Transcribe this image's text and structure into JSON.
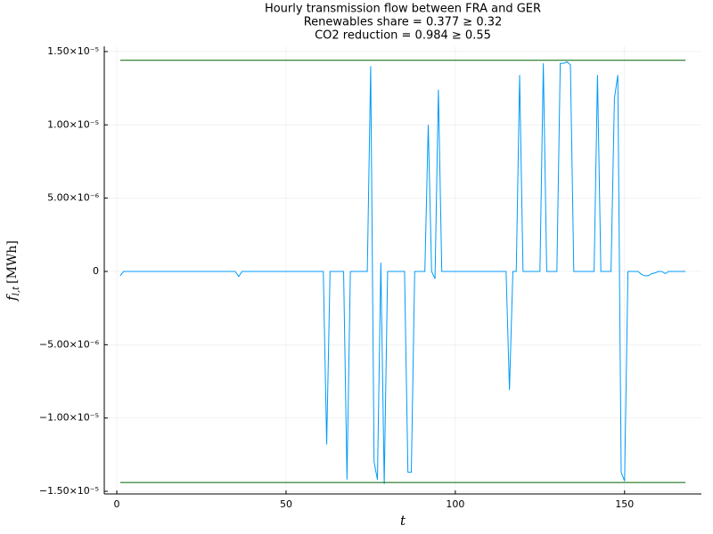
{
  "chart_data": {
    "type": "line",
    "title": [
      "Hourly transmission flow between FRA and GER",
      "Renewables share = 0.377 ≥ 0.32",
      "CO2 reduction = 0.984 ≥ 0.55"
    ],
    "xlabel": "t",
    "ylabel": {
      "symbol": "f",
      "subscript": "l,t",
      "unit": "[MWh]"
    },
    "xlim": [
      -3.7,
      172.7
    ],
    "ylim": [
      -1.518e-05,
      1.536e-05
    ],
    "xticks": [
      0,
      50,
      100,
      150
    ],
    "yticks": [
      {
        "value": 1.5e-05,
        "label": "1.50×10⁻⁵"
      },
      {
        "value": 1e-05,
        "label": "1.00×10⁻⁵"
      },
      {
        "value": 5e-06,
        "label": "5.00×10⁻⁶"
      },
      0,
      {
        "value": -5e-06,
        "label": "−5.00×10⁻⁶"
      },
      {
        "value": -1e-05,
        "label": "−1.00×10⁻⁵"
      },
      {
        "value": -1.5e-05,
        "label": "−1.50×10⁻⁵"
      }
    ],
    "grid": true,
    "x": [
      1,
      2,
      3,
      4,
      5,
      6,
      7,
      8,
      9,
      10,
      11,
      12,
      13,
      14,
      15,
      16,
      17,
      18,
      19,
      20,
      21,
      22,
      23,
      24,
      25,
      26,
      27,
      28,
      29,
      30,
      31,
      32,
      33,
      34,
      35,
      36,
      37,
      38,
      39,
      40,
      41,
      42,
      43,
      44,
      45,
      46,
      47,
      48,
      49,
      50,
      51,
      52,
      53,
      54,
      55,
      56,
      57,
      58,
      59,
      60,
      61,
      62,
      63,
      64,
      65,
      66,
      67,
      68,
      69,
      70,
      71,
      72,
      73,
      74,
      75,
      76,
      77,
      78,
      79,
      80,
      81,
      82,
      83,
      84,
      85,
      86,
      87,
      88,
      89,
      90,
      91,
      92,
      93,
      94,
      95,
      96,
      97,
      98,
      99,
      100,
      101,
      102,
      103,
      104,
      105,
      106,
      107,
      108,
      109,
      110,
      111,
      112,
      113,
      114,
      115,
      116,
      117,
      118,
      119,
      120,
      121,
      122,
      123,
      124,
      125,
      126,
      127,
      128,
      129,
      130,
      131,
      132,
      133,
      134,
      135,
      136,
      137,
      138,
      139,
      140,
      141,
      142,
      143,
      144,
      145,
      146,
      147,
      148,
      149,
      150,
      151,
      152,
      153,
      154,
      155,
      156,
      157,
      158,
      159,
      160,
      161,
      162,
      163,
      164,
      165,
      166,
      167,
      168
    ],
    "series": [
      {
        "color": "#009af9",
        "values": [
          -3e-07,
          0,
          0,
          0,
          0,
          0,
          0,
          0,
          0,
          0,
          0,
          0,
          0,
          0,
          0,
          0,
          0,
          0,
          0,
          0,
          0,
          0,
          0,
          0,
          0,
          0,
          0,
          0,
          0,
          0,
          0,
          0,
          0,
          0,
          0,
          -3.5e-07,
          0,
          0,
          0,
          0,
          0,
          0,
          0,
          0,
          0,
          0,
          0,
          0,
          0,
          0,
          0,
          0,
          0,
          0,
          0,
          0,
          0,
          0,
          0,
          0,
          0,
          -1.18e-05,
          0,
          0,
          0,
          0,
          0,
          -1.42e-05,
          0,
          0,
          0,
          0,
          0,
          0,
          1.4e-05,
          -1.3e-05,
          -1.42e-05,
          6e-07,
          -1.45e-05,
          0,
          0,
          0,
          0,
          0,
          0,
          -1.37e-05,
          -1.37e-05,
          0,
          0,
          0,
          0,
          1e-05,
          0,
          -5e-07,
          1.24e-05,
          0,
          0,
          0,
          0,
          0,
          0,
          0,
          0,
          0,
          0,
          0,
          0,
          0,
          0,
          0,
          0,
          0,
          0,
          0,
          0,
          -8.1e-06,
          0,
          0,
          1.34e-05,
          0,
          0,
          0,
          0,
          0,
          0,
          1.42e-05,
          0,
          0,
          0,
          0,
          1.42e-05,
          1.42e-05,
          1.43e-05,
          1.41e-05,
          0,
          0,
          0,
          0,
          0,
          0,
          0,
          1.34e-05,
          0,
          0,
          0,
          0,
          1.18e-05,
          1.34e-05,
          -1.37e-05,
          -1.43e-05,
          0,
          0,
          0,
          0,
          -2e-07,
          -3e-07,
          -3e-07,
          -1.5e-07,
          -1e-07,
          0,
          0,
          -1.5e-07,
          0,
          0,
          0,
          0,
          0,
          0
        ]
      },
      {
        "color": "#006400",
        "x": [
          1,
          168
        ],
        "values": [
          1.44e-05,
          1.44e-05
        ]
      },
      {
        "color": "#006400",
        "x": [
          1,
          168
        ],
        "values": [
          -1.44e-05,
          -1.44e-05
        ]
      }
    ]
  }
}
